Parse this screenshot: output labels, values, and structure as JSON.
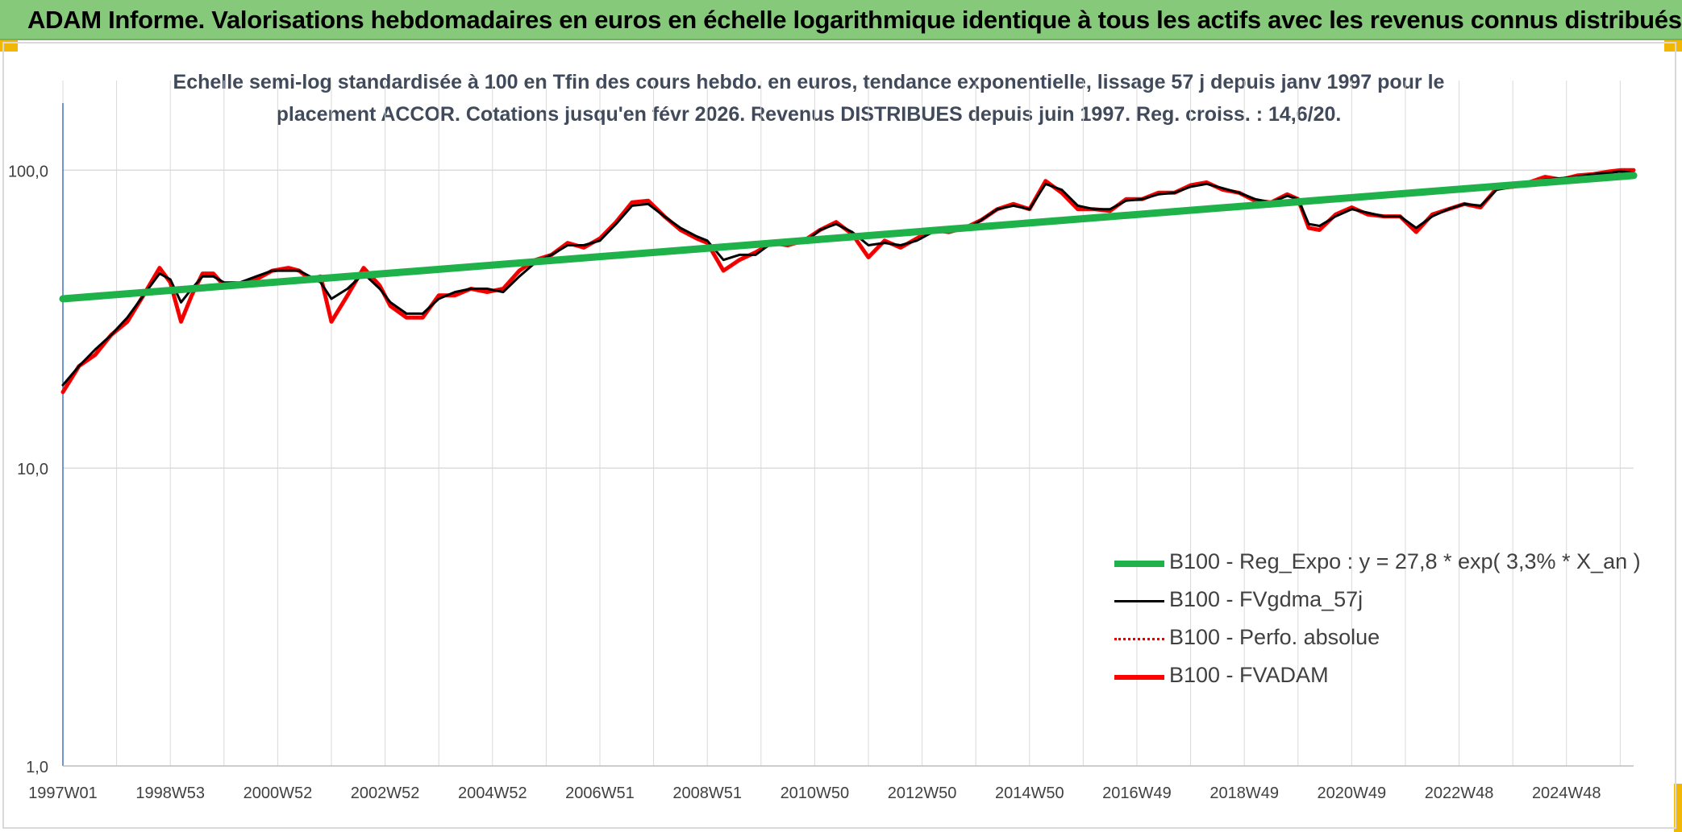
{
  "header": {
    "title": "ADAM Informe. Valorisations hebdomadaires en euros en échelle logarithmique identique à tous les actifs avec les revenus connus distribués"
  },
  "colors": {
    "header_bg": "#86c97a",
    "regression": "#1fb24a",
    "fvadam": "#ff0000",
    "perfo": "#e00000",
    "fvgdma": "#000000",
    "grid": "#d9d9d9",
    "axis": "#4472c4"
  },
  "chart_data": {
    "type": "line",
    "title_line1": "Echelle semi-log standardisée à 100 en Tfin des cours hebdo. en euros, tendance exponentielle, lissage 57 j depuis janv 1997 pour le",
    "title_line2": "placement ACCOR. Cotations jusqu'en févr 2026. Revenus DISTRIBUES depuis juin 1997. Reg. croiss. : 14,6/20.",
    "y_scale": "log",
    "ylim": [
      1,
      200
    ],
    "y_ticks": [
      {
        "value": 1,
        "label": "1,0"
      },
      {
        "value": 10,
        "label": "10,0"
      },
      {
        "value": 100,
        "label": "100,0"
      }
    ],
    "x_range": [
      1997.0,
      2026.25
    ],
    "x_ticks": [
      {
        "value": 1997.0,
        "label": "1997W01"
      },
      {
        "value": 1999.0,
        "label": "1998W53"
      },
      {
        "value": 2001.0,
        "label": "2000W52"
      },
      {
        "value": 2003.0,
        "label": "2002W52"
      },
      {
        "value": 2005.0,
        "label": "2004W52"
      },
      {
        "value": 2007.0,
        "label": "2006W51"
      },
      {
        "value": 2009.0,
        "label": "2008W51"
      },
      {
        "value": 2011.0,
        "label": "2010W50"
      },
      {
        "value": 2013.0,
        "label": "2012W50"
      },
      {
        "value": 2015.0,
        "label": "2014W50"
      },
      {
        "value": 2017.0,
        "label": "2016W49"
      },
      {
        "value": 2019.0,
        "label": "2018W49"
      },
      {
        "value": 2021.0,
        "label": "2020W49"
      },
      {
        "value": 2023.0,
        "label": "2022W48"
      },
      {
        "value": 2025.0,
        "label": "2024W48"
      }
    ],
    "grid": true,
    "legend_position": "bottom-right",
    "series": [
      {
        "name": "B100 - Reg_Expo : y = 27,8 * exp( 3,3% *  X_an )",
        "style": "solid-thick",
        "x": [
          1997.0,
          2026.25
        ],
        "y": [
          37,
          96
        ]
      },
      {
        "name": "B100 - FVgdma_57j",
        "style": "solid-thin",
        "x": [
          1997.0,
          1997.3,
          1997.6,
          1997.9,
          1998.2,
          1998.5,
          1998.8,
          1999.0,
          1999.2,
          1999.4,
          1999.6,
          1999.8,
          2000.0,
          2000.3,
          2000.6,
          2000.9,
          2001.2,
          2001.4,
          2001.6,
          2001.8,
          2002.0,
          2002.3,
          2002.6,
          2002.9,
          2003.1,
          2003.4,
          2003.7,
          2004.0,
          2004.3,
          2004.6,
          2004.9,
          2005.2,
          2005.5,
          2005.8,
          2006.1,
          2006.4,
          2006.7,
          2007.0,
          2007.3,
          2007.6,
          2007.9,
          2008.2,
          2008.5,
          2008.8,
          2009.0,
          2009.3,
          2009.6,
          2009.9,
          2010.2,
          2010.5,
          2010.8,
          2011.1,
          2011.4,
          2011.7,
          2012.0,
          2012.3,
          2012.6,
          2012.9,
          2013.2,
          2013.5,
          2013.8,
          2014.1,
          2014.4,
          2014.7,
          2015.0,
          2015.3,
          2015.6,
          2015.9,
          2016.2,
          2016.5,
          2016.8,
          2017.1,
          2017.4,
          2017.7,
          2018.0,
          2018.3,
          2018.6,
          2018.9,
          2019.2,
          2019.5,
          2019.8,
          2020.0,
          2020.2,
          2020.4,
          2020.7,
          2021.0,
          2021.3,
          2021.6,
          2021.9,
          2022.2,
          2022.5,
          2022.8,
          2023.1,
          2023.4,
          2023.7,
          2024.0,
          2024.3,
          2024.6,
          2024.9,
          2025.2,
          2025.5,
          2025.8,
          2026.0,
          2026.25
        ],
        "y": [
          19,
          22,
          25,
          28,
          32,
          38,
          45,
          43,
          36,
          40,
          44,
          44,
          42,
          42,
          44,
          46,
          46,
          46,
          44,
          42,
          37,
          40,
          45,
          40,
          36,
          33,
          33,
          37,
          39,
          40,
          40,
          39,
          44,
          49,
          52,
          56,
          56,
          58,
          66,
          76,
          77,
          70,
          64,
          60,
          58,
          50,
          52,
          52,
          57,
          57,
          57,
          63,
          66,
          62,
          56,
          57,
          56,
          58,
          62,
          63,
          63,
          68,
          74,
          76,
          74,
          90,
          86,
          76,
          74,
          74,
          79,
          80,
          83,
          84,
          88,
          90,
          87,
          84,
          80,
          78,
          82,
          80,
          66,
          65,
          70,
          74,
          72,
          70,
          70,
          64,
          70,
          74,
          77,
          76,
          86,
          88,
          90,
          93,
          94,
          95,
          97,
          98,
          99,
          98
        ]
      },
      {
        "name": "B100 - Perfo. absolue",
        "style": "dotted",
        "x": [
          1997.0,
          1997.3,
          1997.6,
          1997.9,
          1998.2,
          1998.5,
          1998.8,
          1999.0,
          1999.2,
          1999.4,
          1999.6,
          1999.8,
          2000.0,
          2000.3,
          2000.6,
          2000.9,
          2001.2,
          2001.4,
          2001.6,
          2001.8,
          2002.0,
          2002.3,
          2002.6,
          2002.9,
          2003.1,
          2003.4,
          2003.7,
          2004.0,
          2004.3,
          2004.6,
          2004.9,
          2005.2,
          2005.5,
          2005.8,
          2006.1,
          2006.4,
          2006.7,
          2007.0,
          2007.3,
          2007.6,
          2007.9,
          2008.2,
          2008.5,
          2008.8,
          2009.0,
          2009.3,
          2009.6,
          2009.9,
          2010.2,
          2010.5,
          2010.8,
          2011.1,
          2011.4,
          2011.7,
          2012.0,
          2012.3,
          2012.6,
          2012.9,
          2013.2,
          2013.5,
          2013.8,
          2014.1,
          2014.4,
          2014.7,
          2015.0,
          2015.3,
          2015.6,
          2015.9,
          2016.2,
          2016.5,
          2016.8,
          2017.1,
          2017.4,
          2017.7,
          2018.0,
          2018.3,
          2018.6,
          2018.9,
          2019.2,
          2019.5,
          2019.8,
          2020.0,
          2020.2,
          2020.4,
          2020.7,
          2021.0,
          2021.3,
          2021.6,
          2021.9,
          2022.2,
          2022.5,
          2022.8,
          2023.1,
          2023.4,
          2023.7,
          2024.0,
          2024.3,
          2024.6,
          2024.9,
          2025.2,
          2025.5,
          2025.8,
          2026.0,
          2026.25
        ],
        "y": [
          18,
          22,
          24,
          28,
          31,
          38,
          47,
          42,
          31,
          38,
          45,
          45,
          41,
          41,
          43,
          46,
          47,
          46,
          43,
          44,
          31,
          38,
          47,
          41,
          35,
          32,
          32,
          38,
          38,
          40,
          39,
          40,
          46,
          50,
          52,
          57,
          55,
          59,
          67,
          78,
          79,
          70,
          63,
          59,
          57,
          46,
          50,
          53,
          57,
          56,
          58,
          63,
          67,
          61,
          51,
          58,
          55,
          59,
          63,
          62,
          64,
          68,
          74,
          77,
          74,
          92,
          84,
          74,
          74,
          73,
          80,
          80,
          84,
          84,
          89,
          91,
          86,
          84,
          79,
          78,
          83,
          80,
          64,
          63,
          71,
          75,
          71,
          70,
          70,
          62,
          71,
          74,
          77,
          75,
          87,
          88,
          91,
          95,
          93,
          96,
          97,
          99,
          100,
          100
        ]
      },
      {
        "name": "B100 - FVADAM",
        "style": "solid-thick",
        "x": [
          1997.0,
          1997.3,
          1997.6,
          1997.9,
          1998.2,
          1998.5,
          1998.8,
          1999.0,
          1999.2,
          1999.4,
          1999.6,
          1999.8,
          2000.0,
          2000.3,
          2000.6,
          2000.9,
          2001.2,
          2001.4,
          2001.6,
          2001.8,
          2002.0,
          2002.3,
          2002.6,
          2002.9,
          2003.1,
          2003.4,
          2003.7,
          2004.0,
          2004.3,
          2004.6,
          2004.9,
          2005.2,
          2005.5,
          2005.8,
          2006.1,
          2006.4,
          2006.7,
          2007.0,
          2007.3,
          2007.6,
          2007.9,
          2008.2,
          2008.5,
          2008.8,
          2009.0,
          2009.3,
          2009.6,
          2009.9,
          2010.2,
          2010.5,
          2010.8,
          2011.1,
          2011.4,
          2011.7,
          2012.0,
          2012.3,
          2012.6,
          2012.9,
          2013.2,
          2013.5,
          2013.8,
          2014.1,
          2014.4,
          2014.7,
          2015.0,
          2015.3,
          2015.6,
          2015.9,
          2016.2,
          2016.5,
          2016.8,
          2017.1,
          2017.4,
          2017.7,
          2018.0,
          2018.3,
          2018.6,
          2018.9,
          2019.2,
          2019.5,
          2019.8,
          2020.0,
          2020.2,
          2020.4,
          2020.7,
          2021.0,
          2021.3,
          2021.6,
          2021.9,
          2022.2,
          2022.5,
          2022.8,
          2023.1,
          2023.4,
          2023.7,
          2024.0,
          2024.3,
          2024.6,
          2024.9,
          2025.2,
          2025.5,
          2025.8,
          2026.0,
          2026.25
        ],
        "y": [
          18,
          22,
          24,
          28,
          31,
          38,
          47,
          42,
          31,
          38,
          45,
          45,
          41,
          41,
          43,
          46,
          47,
          46,
          43,
          44,
          31,
          38,
          47,
          41,
          35,
          32,
          32,
          38,
          38,
          40,
          39,
          40,
          46,
          50,
          52,
          57,
          55,
          59,
          67,
          78,
          79,
          70,
          63,
          59,
          57,
          46,
          50,
          53,
          57,
          56,
          58,
          63,
          67,
          61,
          51,
          58,
          55,
          59,
          63,
          62,
          64,
          68,
          74,
          77,
          74,
          92,
          84,
          74,
          74,
          73,
          80,
          80,
          84,
          84,
          89,
          91,
          86,
          84,
          79,
          78,
          83,
          80,
          64,
          63,
          71,
          75,
          71,
          70,
          70,
          62,
          71,
          74,
          77,
          75,
          87,
          88,
          91,
          95,
          93,
          96,
          97,
          99,
          100,
          100
        ]
      }
    ]
  }
}
